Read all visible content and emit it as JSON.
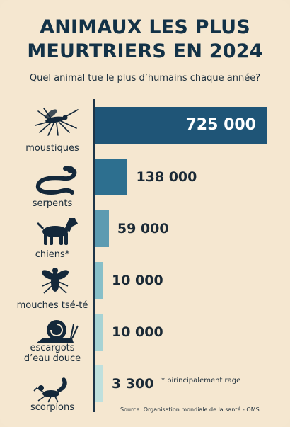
{
  "title_line1": "ANIMAUX LES PLUS",
  "title_line2": "MEURTRIERS EN 2024",
  "subtitle": "Quel animal tue le plus d’humains chaque année?",
  "note": "* pirincipalement rage",
  "source": "Source: Organisation mondiale de la santé - OMS",
  "colors": [
    "#1f5577",
    "#2d6f8f",
    "#5c9bb1",
    "#87bfc8",
    "#a7d3d4",
    "#bfe0dd"
  ],
  "icons": [
    "mosquito-icon",
    "snake-icon",
    "dog-icon",
    "tsetse-fly-icon",
    "snail-icon",
    "scorpion-icon"
  ],
  "chart_data": {
    "type": "bar",
    "orientation": "horizontal",
    "title": "ANIMAUX LES PLUS MEURTRIERS EN 2024",
    "subtitle": "Quel animal tue le plus d’humains chaque année?",
    "categories": [
      "moustiques",
      "serpents",
      "chiens*",
      "mouches tsé-té",
      "escargots d’eau douce",
      "scorpions"
    ],
    "category_lines": [
      [
        "moustiques"
      ],
      [
        "serpents"
      ],
      [
        "chiens*"
      ],
      [
        "mouches tsé-té"
      ],
      [
        "escargots",
        "d’eau douce"
      ],
      [
        "scorpions"
      ]
    ],
    "values": [
      725000,
      138000,
      59000,
      10000,
      10000,
      3300
    ],
    "value_labels": [
      "725 000",
      "138 000",
      "59 000",
      "10 000",
      "10 000",
      "3 300"
    ],
    "xlim": [
      0,
      725000
    ]
  }
}
